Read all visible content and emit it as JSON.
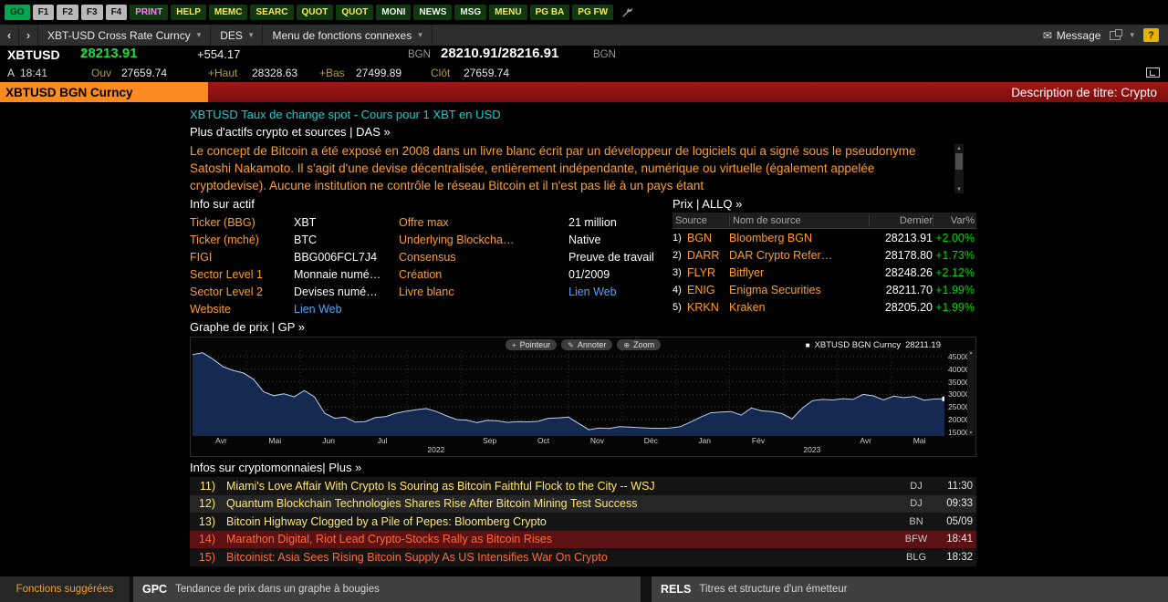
{
  "colors": {
    "accent_orange": "#fb8b1e",
    "label_orange": "#ff9e24",
    "up_green": "#00d500",
    "headline_cyan": "#00d8d8",
    "link_blue": "#4da6ff",
    "title_red": "#8e1111",
    "news_alert_red": "#5c1113"
  },
  "toolbar": {
    "keys": [
      {
        "label": "GO",
        "style": "go"
      },
      {
        "label": "F1",
        "style": "fkey"
      },
      {
        "label": "F2",
        "style": "fkey"
      },
      {
        "label": "F3",
        "style": "fkey"
      },
      {
        "label": "F4",
        "style": "fkey"
      },
      {
        "label": "PRINT",
        "style": "magenta"
      },
      {
        "label": "HELP",
        "style": "green"
      },
      {
        "label": "MEMC",
        "style": "green"
      },
      {
        "label": "SEARC",
        "style": "green"
      },
      {
        "label": "QUOT",
        "style": "green"
      },
      {
        "label": "QUOT",
        "style": "green"
      },
      {
        "label": "MONI",
        "style": "white"
      },
      {
        "label": "NEWS",
        "style": "white"
      },
      {
        "label": "MSG",
        "style": "white"
      },
      {
        "label": "MENU",
        "style": "green"
      },
      {
        "label": "PG BA",
        "style": "green"
      },
      {
        "label": "PG FW",
        "style": "green"
      }
    ]
  },
  "navbar": {
    "back_icon": "‹",
    "forward_icon": "›",
    "caret_icon": "▾",
    "security": "XBT-USD Cross Rate Curncy",
    "function_code": "DES",
    "related_menu": "Menu de fonctions connexes",
    "envelope_icon": "✉",
    "message_label": "Message",
    "help_icon": "?"
  },
  "quote": {
    "ticker": "XBTUSD",
    "arrow": "↑",
    "last": "28213.91",
    "change": "+554.17",
    "src_left": "BGN",
    "bid_ask": "28210.91/28216.91",
    "src_right": "BGN",
    "session": "A",
    "time": "18:41",
    "open_label": "Ouv",
    "open": "27659.74",
    "high_label": "+Haut",
    "high": "28328.63",
    "low_label": "+Bas",
    "low": "27499.89",
    "close_label": "Clôt",
    "close": "27659.74"
  },
  "titlebar": {
    "security": "XBTUSD BGN Curncy",
    "description": "Description de titre: Crypto"
  },
  "main": {
    "headline": "XBTUSD Taux de change spot - Cours pour 1 XBT en USD",
    "subline": "Plus d'actifs crypto et sources | DAS »",
    "description": "Le concept de Bitcoin a été exposé en 2008 dans un livre blanc écrit par un développeur de logiciels qui a signé sous le pseudonyme Satoshi Nakamoto. Il s'agit d'une devise décentralisée, entièrement indépendante, numérique ou virtuelle (également appelée cryptodevise). Aucune institution ne contrôle le réseau Bitcoin et il n'est pas lié à un pays étant",
    "info": {
      "title": "Info sur actif",
      "col1": [
        {
          "label": "Ticker (BBG)",
          "value": "XBT"
        },
        {
          "label": "Ticker (mché)",
          "value": "BTC"
        },
        {
          "label": "FIGI",
          "value": "BBG006FCL7J4"
        },
        {
          "label": "Sector Level 1",
          "value": "Monnaie numé…"
        },
        {
          "label": "Sector Level 2",
          "value": "Devises numé…"
        },
        {
          "label": "Website",
          "value": "Lien Web",
          "link": true
        }
      ],
      "col2": [
        {
          "label": "Offre max",
          "value": "21 million"
        },
        {
          "label": "Underlying Blockcha…",
          "value": "Native"
        },
        {
          "label": "Consensus",
          "value": "Preuve de travail"
        },
        {
          "label": "Création",
          "value": "01/2009"
        },
        {
          "label": "Livre blanc",
          "value": "Lien Web",
          "link": true
        }
      ]
    },
    "price_table": {
      "title": "Prix | ALLQ »",
      "headers": [
        "Source",
        "Nom de source",
        "Dernier",
        "Var%"
      ],
      "rows": [
        {
          "num": "1)",
          "source": "BGN",
          "name": "Bloomberg BGN",
          "last": "28213.91",
          "chg": "+2.00%"
        },
        {
          "num": "2)",
          "source": "DARR",
          "name": "DAR Crypto Refer…",
          "last": "28178.80",
          "chg": "+1.73%"
        },
        {
          "num": "3)",
          "source": "FLYR",
          "name": "Bitflyer",
          "last": "28248.26",
          "chg": "+2.12%"
        },
        {
          "num": "4)",
          "source": "ENIG",
          "name": "Enigma Securities",
          "last": "28211.70",
          "chg": "+1.99%"
        },
        {
          "num": "5)",
          "source": "KRKN",
          "name": "Kraken",
          "last": "28205.20",
          "chg": "+1.99%"
        }
      ]
    },
    "chart": {
      "title": "Graphe de prix | GP »",
      "tools": [
        {
          "name": "pointer",
          "icon": "+",
          "label": "Pointeur"
        },
        {
          "name": "annotate",
          "icon": "✎",
          "label": "Annoter"
        },
        {
          "name": "zoom",
          "icon": "⊕",
          "label": "Zoom"
        }
      ],
      "legend_swatch": "■",
      "legend_label": "XBTUSD BGN Curncy",
      "legend_value": "28211.19"
    },
    "news": {
      "title": "Infos sur cryptomonnaies| Plus »",
      "items": [
        {
          "num": "11)",
          "headline": "Miami's Love Affair With Crypto Is Souring as Bitcoin Faithful Flock to the City -- WSJ",
          "source": "DJ",
          "time": "11:30",
          "recent": false,
          "highlighted": false
        },
        {
          "num": "12)",
          "headline": "Quantum Blockchain Technologies Shares Rise After Bitcoin Mining Test Success",
          "source": "DJ",
          "time": "09:33",
          "recent": false,
          "highlighted": false
        },
        {
          "num": "13)",
          "headline": "Bitcoin Highway Clogged by a Pile of Pepes: Bloomberg Crypto",
          "source": "BN",
          "time": "05/09",
          "recent": false,
          "highlighted": false
        },
        {
          "num": "14)",
          "headline": "Marathon Digital, Riot Lead Crypto-Stocks Rally as Bitcoin Rises",
          "source": "BFW",
          "time": "18:41",
          "recent": true,
          "highlighted": true
        },
        {
          "num": "15)",
          "headline": "Bitcoinist: Asia Sees Rising Bitcoin Supply As US Intensifies War On Crypto",
          "source": "BLG",
          "time": "18:32",
          "recent": true,
          "highlighted": false
        }
      ]
    }
  },
  "footer": {
    "suggested": "Fonctions suggérées",
    "shortcuts": [
      {
        "code": "GPC",
        "desc": "Tendance de prix dans un graphe à bougies"
      },
      {
        "code": "RELS",
        "desc": "Titres et structure d'un émetteur"
      }
    ]
  },
  "chart_data": {
    "type": "area",
    "title": "XBTUSD BGN Curncy",
    "legend_last": 28211.19,
    "x_labels": [
      "Avr",
      "Mai",
      "Jun",
      "Jul",
      "",
      "Sep",
      "Oct",
      "Nov",
      "Déc",
      "Jan",
      "Fév",
      "",
      "Avr",
      "Mai"
    ],
    "year_labels": [
      {
        "text": "2022",
        "slot": 4
      },
      {
        "text": "2023",
        "slot": 11
      }
    ],
    "y_ticks": [
      15000,
      20000,
      25000,
      30000,
      35000,
      40000,
      45000
    ],
    "ylim": [
      13500,
      47500
    ],
    "grid": true,
    "values": [
      45800,
      46500,
      44000,
      41000,
      39500,
      38500,
      36000,
      31000,
      29500,
      30200,
      29000,
      31500,
      29000,
      22500,
      20500,
      21000,
      19000,
      19200,
      20800,
      21200,
      22500,
      23300,
      23900,
      24400,
      23200,
      21500,
      20000,
      19800,
      18800,
      19700,
      19500,
      18900,
      19200,
      19100,
      19300,
      20500,
      20700,
      21000,
      18500,
      16000,
      16700,
      16500,
      17200,
      17000,
      16800,
      16600,
      16550,
      16700,
      17200,
      19000,
      21000,
      22700,
      23000,
      23200,
      21800,
      24600,
      23500,
      23200,
      22400,
      20300,
      24500,
      27500,
      28000,
      27800,
      28300,
      28000,
      30000,
      29400,
      27800,
      29300,
      28700,
      29200,
      27700,
      28200,
      28211
    ]
  }
}
